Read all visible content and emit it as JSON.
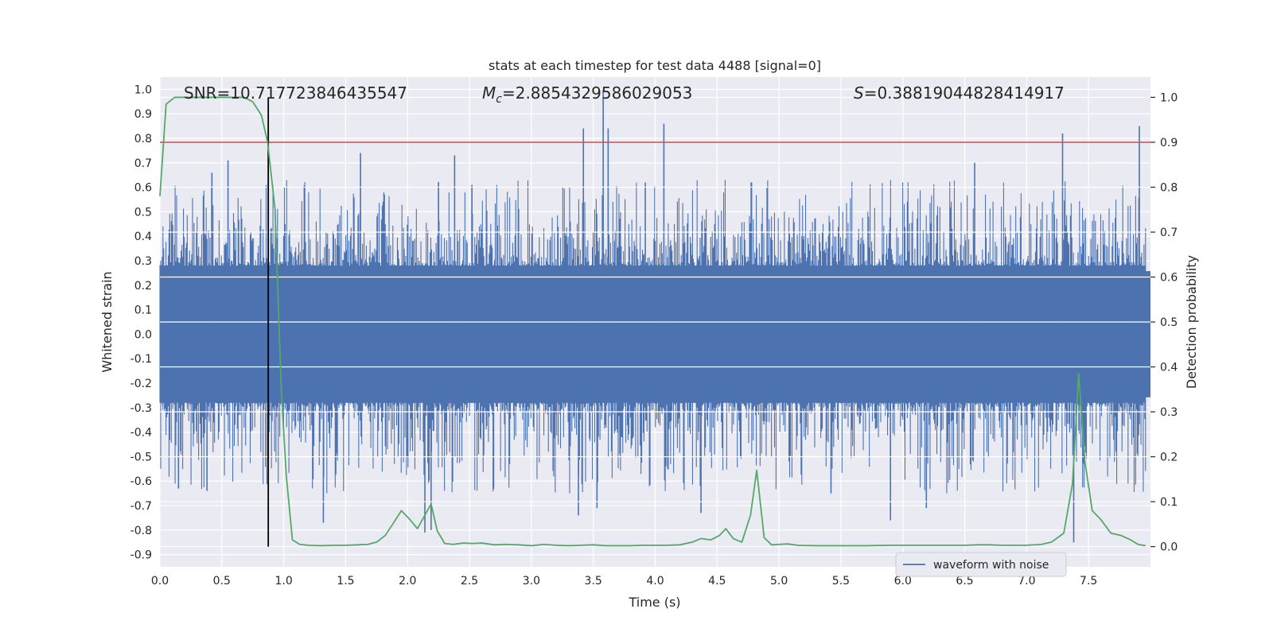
{
  "chart_data": {
    "type": "line",
    "title": "stats at each timestep for test data 4488 [signal=0]",
    "xlabel": "Time (s)",
    "ylabel_left": "Whitened strain",
    "ylabel_right": "Detection probability",
    "xlim": [
      0.0,
      8.0
    ],
    "ylim_left": [
      -0.95,
      1.05
    ],
    "ylim_right": [
      -0.045,
      1.045
    ],
    "grid": true,
    "legend_position": "lower-right",
    "xticks": [
      0.0,
      0.5,
      1.0,
      1.5,
      2.0,
      2.5,
      3.0,
      3.5,
      4.0,
      4.5,
      5.0,
      5.5,
      6.0,
      6.5,
      7.0,
      7.5
    ],
    "xtick_labels": [
      "0.0",
      "0.5",
      "1.0",
      "1.5",
      "2.0",
      "2.5",
      "3.0",
      "3.5",
      "4.0",
      "4.5",
      "5.0",
      "5.5",
      "6.0",
      "6.5",
      "7.0",
      "7.5"
    ],
    "yticks_left": [
      -0.9,
      -0.8,
      -0.7,
      -0.6,
      -0.5,
      -0.4,
      -0.3,
      -0.2,
      -0.1,
      0.0,
      0.1,
      0.2,
      0.3,
      0.4,
      0.5,
      0.6,
      0.7,
      0.8,
      0.9,
      1.0
    ],
    "ytick_labels_left": [
      "-0.9",
      "-0.8",
      "-0.7",
      "-0.6",
      "-0.5",
      "-0.4",
      "-0.3",
      "-0.2",
      "-0.1",
      "0.0",
      "0.1",
      "0.2",
      "0.3",
      "0.4",
      "0.5",
      "0.6",
      "0.7",
      "0.8",
      "0.9",
      "1.0"
    ],
    "yticks_right": [
      0.0,
      0.1,
      0.2,
      0.3,
      0.4,
      0.5,
      0.6,
      0.7,
      0.8,
      0.9,
      1.0
    ],
    "ytick_labels_right": [
      "0.0",
      "0.1",
      "0.2",
      "0.3",
      "0.4",
      "0.5",
      "0.6",
      "0.7",
      "0.8",
      "0.9",
      "1.0"
    ],
    "annotations": {
      "snr": "SNR=10.717723846435547",
      "mc_symbol": "M",
      "mc_subscript": "c",
      "mc_value": "=2.8854329586029053",
      "s_symbol": "S",
      "s_value": "=0.38819044828414917"
    },
    "threshold": {
      "axis": "right",
      "y": 0.9,
      "color": "#c44e52"
    },
    "marker_line": {
      "x": 0.875,
      "color": "#000000"
    },
    "series": [
      {
        "name": "waveform with noise",
        "axis": "left",
        "color": "#4c72b0",
        "style": "dense-noise",
        "core_abs": 0.28,
        "typical_max": 0.45,
        "peaks": [
          {
            "x": 0.55,
            "y": 0.71
          },
          {
            "x": 0.42,
            "y": 0.66
          },
          {
            "x": 1.62,
            "y": 0.74
          },
          {
            "x": 2.38,
            "y": 0.73
          },
          {
            "x": 3.42,
            "y": 0.84
          },
          {
            "x": 3.58,
            "y": 1.0
          },
          {
            "x": 3.62,
            "y": 0.84
          },
          {
            "x": 4.07,
            "y": 0.86
          },
          {
            "x": 7.29,
            "y": 0.82
          },
          {
            "x": 7.91,
            "y": 0.85
          },
          {
            "x": 6.58,
            "y": 0.7
          },
          {
            "x": 2.25,
            "y": 0.62
          },
          {
            "x": 2.52,
            "y": 0.61
          },
          {
            "x": 3.92,
            "y": 0.62
          }
        ],
        "troughs": [
          {
            "x": 1.32,
            "y": -0.77
          },
          {
            "x": 2.14,
            "y": -0.81
          },
          {
            "x": 2.19,
            "y": -0.8
          },
          {
            "x": 3.38,
            "y": -0.74
          },
          {
            "x": 3.53,
            "y": -0.71
          },
          {
            "x": 4.37,
            "y": -0.73
          },
          {
            "x": 5.9,
            "y": -0.76
          },
          {
            "x": 7.38,
            "y": -0.85
          },
          {
            "x": 0.38,
            "y": -0.64
          },
          {
            "x": 0.15,
            "y": -0.63
          },
          {
            "x": 6.19,
            "y": -0.71
          },
          {
            "x": 5.42,
            "y": -0.65
          }
        ]
      },
      {
        "name": "",
        "axis": "right",
        "color": "#55a868",
        "style": "line",
        "x": [
          0.0,
          0.05,
          0.12,
          0.2,
          0.3,
          0.4,
          0.5,
          0.6,
          0.68,
          0.75,
          0.82,
          0.87,
          0.93,
          0.98,
          1.02,
          1.07,
          1.13,
          1.2,
          1.3,
          1.4,
          1.5,
          1.6,
          1.68,
          1.75,
          1.82,
          1.88,
          1.95,
          2.02,
          2.08,
          2.14,
          2.19,
          2.24,
          2.3,
          2.37,
          2.45,
          2.52,
          2.6,
          2.7,
          2.8,
          2.9,
          3.0,
          3.1,
          3.2,
          3.3,
          3.4,
          3.5,
          3.6,
          3.7,
          3.8,
          3.9,
          4.0,
          4.1,
          4.2,
          4.3,
          4.37,
          4.45,
          4.52,
          4.57,
          4.63,
          4.7,
          4.77,
          4.82,
          4.88,
          4.94,
          5.0,
          5.07,
          5.15,
          5.3,
          5.5,
          5.7,
          5.9,
          6.1,
          6.3,
          6.5,
          6.6,
          6.7,
          6.8,
          6.9,
          7.0,
          7.12,
          7.2,
          7.3,
          7.37,
          7.42,
          7.47,
          7.53,
          7.6,
          7.68,
          7.76,
          7.84,
          7.9,
          7.96
        ],
        "y": [
          0.78,
          0.985,
          1.0,
          1.0,
          1.0,
          1.0,
          1.0,
          1.0,
          1.0,
          0.99,
          0.96,
          0.9,
          0.75,
          0.35,
          0.16,
          0.015,
          0.005,
          0.003,
          0.002,
          0.003,
          0.003,
          0.004,
          0.005,
          0.01,
          0.025,
          0.05,
          0.08,
          0.06,
          0.04,
          0.07,
          0.095,
          0.035,
          0.007,
          0.005,
          0.008,
          0.007,
          0.008,
          0.004,
          0.005,
          0.004,
          0.002,
          0.005,
          0.003,
          0.002,
          0.003,
          0.004,
          0.002,
          0.002,
          0.002,
          0.003,
          0.003,
          0.003,
          0.004,
          0.01,
          0.018,
          0.015,
          0.025,
          0.04,
          0.018,
          0.01,
          0.07,
          0.17,
          0.02,
          0.004,
          0.005,
          0.006,
          0.003,
          0.002,
          0.002,
          0.002,
          0.003,
          0.003,
          0.003,
          0.003,
          0.004,
          0.004,
          0.003,
          0.003,
          0.003,
          0.005,
          0.01,
          0.03,
          0.14,
          0.385,
          0.19,
          0.08,
          0.06,
          0.03,
          0.025,
          0.015,
          0.005,
          0.002
        ]
      }
    ]
  }
}
